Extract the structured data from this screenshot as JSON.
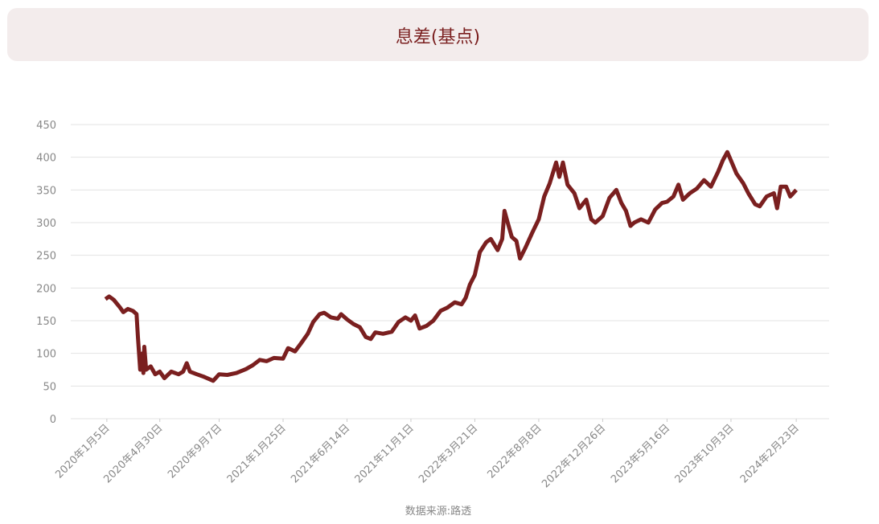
{
  "chart_data": {
    "type": "line",
    "title": "息差(基点)",
    "source": "数据来源:路透",
    "x": [
      "2020-01-02",
      "2020-01-10",
      "2020-01-20",
      "2020-02-03",
      "2020-02-10",
      "2020-02-20",
      "2020-03-02",
      "2020-03-10",
      "2020-03-13",
      "2020-03-18",
      "2020-03-23",
      "2020-03-25",
      "2020-03-27",
      "2020-03-31",
      "2020-04-10",
      "2020-04-20",
      "2020-04-30",
      "2020-05-10",
      "2020-05-25",
      "2020-06-10",
      "2020-06-20",
      "2020-06-28",
      "2020-07-05",
      "2020-07-20",
      "2020-08-05",
      "2020-08-25",
      "2020-09-07",
      "2020-09-25",
      "2020-10-15",
      "2020-11-05",
      "2020-11-20",
      "2020-12-05",
      "2020-12-20",
      "2021-01-05",
      "2021-01-25",
      "2021-02-05",
      "2021-02-20",
      "2021-03-05",
      "2021-03-20",
      "2021-04-01",
      "2021-04-15",
      "2021-04-25",
      "2021-05-10",
      "2021-05-25",
      "2021-06-01",
      "2021-06-14",
      "2021-06-28",
      "2021-07-12",
      "2021-07-25",
      "2021-08-05",
      "2021-08-15",
      "2021-09-01",
      "2021-09-20",
      "2021-10-05",
      "2021-10-20",
      "2021-11-01",
      "2021-11-10",
      "2021-11-20",
      "2021-12-05",
      "2021-12-20",
      "2022-01-05",
      "2022-01-20",
      "2022-02-05",
      "2022-02-20",
      "2022-03-01",
      "2022-03-10",
      "2022-03-21",
      "2022-04-01",
      "2022-04-15",
      "2022-04-25",
      "2022-05-10",
      "2022-05-20",
      "2022-05-25",
      "2022-06-01",
      "2022-06-10",
      "2022-06-20",
      "2022-06-28",
      "2022-07-10",
      "2022-07-25",
      "2022-08-08",
      "2022-08-20",
      "2022-09-01",
      "2022-09-15",
      "2022-09-22",
      "2022-09-30",
      "2022-10-10",
      "2022-10-25",
      "2022-11-05",
      "2022-11-20",
      "2022-12-01",
      "2022-12-10",
      "2022-12-26",
      "2023-01-10",
      "2023-01-25",
      "2023-02-05",
      "2023-02-15",
      "2023-02-25",
      "2023-03-05",
      "2023-03-20",
      "2023-04-05",
      "2023-04-20",
      "2023-05-05",
      "2023-05-16",
      "2023-05-30",
      "2023-06-10",
      "2023-06-20",
      "2023-07-05",
      "2023-07-20",
      "2023-08-05",
      "2023-08-20",
      "2023-09-05",
      "2023-09-15",
      "2023-09-25",
      "2023-10-03",
      "2023-10-15",
      "2023-10-30",
      "2023-11-10",
      "2023-11-25",
      "2023-12-05",
      "2023-12-20",
      "2024-01-05",
      "2024-01-12",
      "2024-01-20",
      "2024-02-01",
      "2024-02-10",
      "2024-02-23"
    ],
    "values": [
      183,
      187,
      182,
      170,
      163,
      168,
      165,
      160,
      125,
      75,
      100,
      70,
      110,
      75,
      80,
      68,
      72,
      62,
      72,
      68,
      72,
      85,
      72,
      68,
      64,
      58,
      68,
      67,
      70,
      76,
      82,
      90,
      88,
      93,
      92,
      108,
      103,
      115,
      130,
      148,
      160,
      162,
      155,
      153,
      160,
      152,
      145,
      140,
      125,
      122,
      132,
      130,
      133,
      148,
      155,
      150,
      158,
      138,
      142,
      150,
      165,
      170,
      178,
      175,
      185,
      205,
      220,
      255,
      270,
      275,
      258,
      275,
      318,
      300,
      278,
      272,
      245,
      262,
      285,
      305,
      340,
      360,
      392,
      370,
      392,
      358,
      345,
      322,
      335,
      305,
      300,
      310,
      338,
      350,
      330,
      318,
      295,
      300,
      305,
      300,
      320,
      330,
      332,
      340,
      358,
      335,
      345,
      352,
      365,
      355,
      378,
      395,
      408,
      395,
      375,
      360,
      345,
      328,
      325,
      340,
      345,
      322,
      355,
      355,
      340,
      350
    ],
    "color": "#7a1f1f",
    "xlim": [
      "2019-10-18",
      "2024-05-05"
    ],
    "xticks": [
      {
        "value": "2020-01-05",
        "label": "2020年1月5日"
      },
      {
        "value": "2020-04-30",
        "label": "2020年4月30日"
      },
      {
        "value": "2020-09-07",
        "label": "2020年9月7日"
      },
      {
        "value": "2021-01-25",
        "label": "2021年1月25日"
      },
      {
        "value": "2021-06-14",
        "label": "2021年6月14日"
      },
      {
        "value": "2021-11-01",
        "label": "2021年11月1日"
      },
      {
        "value": "2022-03-21",
        "label": "2022年3月21日"
      },
      {
        "value": "2022-08-08",
        "label": "2022年8月8日"
      },
      {
        "value": "2022-12-26",
        "label": "2022年12月26日"
      },
      {
        "value": "2023-05-16",
        "label": "2023年5月16日"
      },
      {
        "value": "2023-10-03",
        "label": "2023年10月3日"
      },
      {
        "value": "2024-02-23",
        "label": "2024年2月23日"
      }
    ],
    "ylim": [
      0,
      450
    ],
    "yticks": [
      0,
      50,
      100,
      150,
      200,
      250,
      300,
      350,
      400,
      450
    ],
    "grid": true
  }
}
